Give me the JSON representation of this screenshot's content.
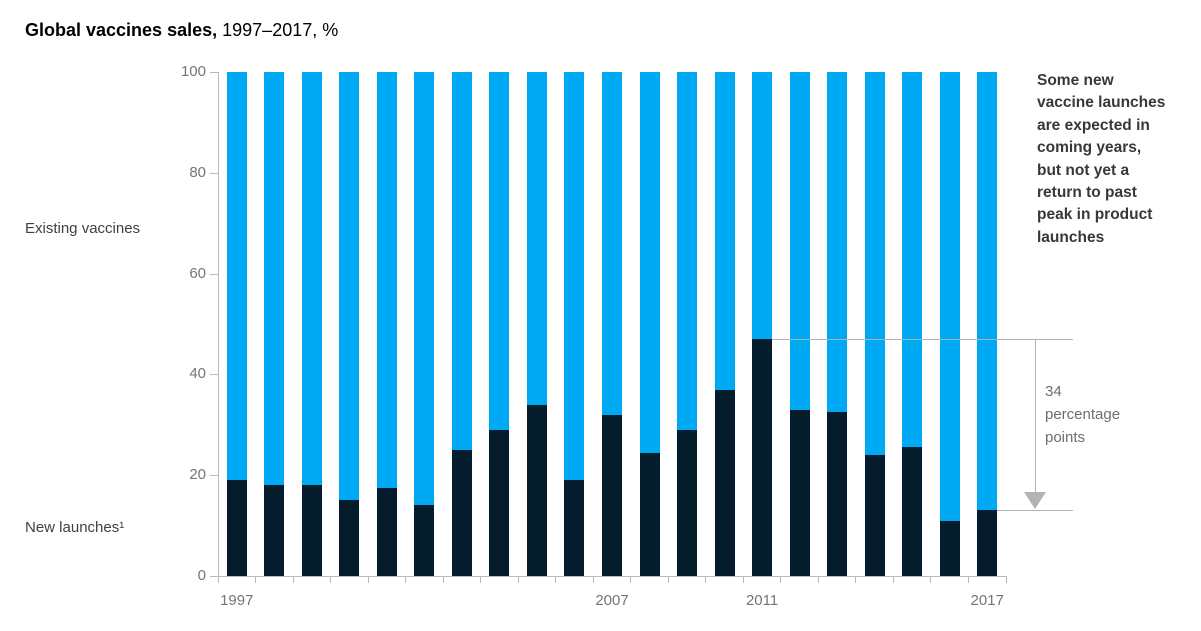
{
  "title": {
    "bold": "Global vaccines sales,",
    "period": "1997–2017, %"
  },
  "left_labels": {
    "existing": "Existing vaccines",
    "new_launches": "New launches¹"
  },
  "y_axis": {
    "ticks": [
      0,
      20,
      40,
      60,
      80,
      100
    ]
  },
  "x_axis": {
    "labeled_years": [
      "1997",
      "2007",
      "2011",
      "2017"
    ]
  },
  "annotation": {
    "note": "Some new\nvaccine launches\nare expected in\ncoming years,\nbut not yet a\nreturn to past\npeak in product\nlaunches",
    "delta_label": "34\npercentage\npoints",
    "from_year": "2011",
    "to_year": "2017"
  },
  "colors": {
    "existing_blue": "#00A9F4",
    "new_launches_navy": "#051C2C",
    "axis_gray": "#b9b9b9",
    "muted_text_gray": "#757575",
    "annotation_gray": "#b3b3b3"
  },
  "chart_data": {
    "type": "bar",
    "stacked": true,
    "title": "Global vaccines sales, 1997–2017, %",
    "unit": "%",
    "ylim": [
      0,
      100
    ],
    "grid": false,
    "legend_position": "left-outside",
    "categories": [
      "1997",
      "1998",
      "1999",
      "2000",
      "2001",
      "2002",
      "2003",
      "2004",
      "2005",
      "2006",
      "2007",
      "2008",
      "2009",
      "2010",
      "2011",
      "2012",
      "2013",
      "2014",
      "2015",
      "2016",
      "2017"
    ],
    "series": [
      {
        "name": "New launches",
        "color": "#051C2C",
        "values": [
          19,
          18,
          18,
          15,
          17.5,
          14,
          25,
          29,
          34,
          19,
          32,
          24.5,
          29,
          37,
          47,
          33,
          32.5,
          24,
          25.5,
          11,
          13
        ]
      },
      {
        "name": "Existing vaccines",
        "color": "#00A9F4",
        "values": [
          81,
          82,
          82,
          85,
          82.5,
          86,
          75,
          71,
          66,
          81,
          68,
          75.5,
          71,
          63,
          53,
          67,
          67.5,
          76,
          74.5,
          89,
          87
        ]
      }
    ],
    "annotations": [
      {
        "label": "34 percentage points",
        "from": {
          "year": "2011",
          "value": 47
        },
        "to": {
          "year": "2017",
          "value": 13
        }
      }
    ]
  }
}
